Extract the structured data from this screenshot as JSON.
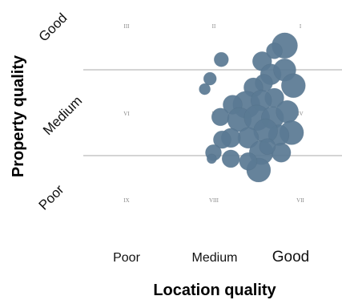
{
  "chart_data": {
    "type": "scatter",
    "xlabel": "Location quality",
    "ylabel": "Property quality",
    "x_categories": [
      "Poor",
      "Medium",
      "Good"
    ],
    "y_categories": [
      "Poor",
      "Medium",
      "Good"
    ],
    "zones": [
      {
        "label": "I",
        "x": "Good",
        "y": "Good"
      },
      {
        "label": "II",
        "x": "Medium",
        "y": "Good"
      },
      {
        "label": "III",
        "x": "Poor",
        "y": "Good"
      },
      {
        "label": "IV",
        "x": "Good",
        "y": "Medium"
      },
      {
        "label": "V",
        "x": "Medium",
        "y": "Medium"
      },
      {
        "label": "VI",
        "x": "Poor",
        "y": "Medium"
      },
      {
        "label": "VII",
        "x": "Good",
        "y": "Poor"
      },
      {
        "label": "VIII",
        "x": "Medium",
        "y": "Poor"
      },
      {
        "label": "IX",
        "x": "Poor",
        "y": "Poor"
      }
    ],
    "bubble_color": "#5a7a93",
    "grid": "horizontal dividers between quality bands",
    "points": [
      {
        "x": 2.82,
        "y": 2.78,
        "size": 16
      },
      {
        "x": 2.56,
        "y": 2.6,
        "size": 12
      },
      {
        "x": 2.7,
        "y": 2.72,
        "size": 10
      },
      {
        "x": 2.66,
        "y": 2.45,
        "size": 13
      },
      {
        "x": 2.82,
        "y": 2.5,
        "size": 14
      },
      {
        "x": 2.92,
        "y": 2.32,
        "size": 15
      },
      {
        "x": 2.58,
        "y": 2.35,
        "size": 11
      },
      {
        "x": 2.46,
        "y": 2.3,
        "size": 12
      },
      {
        "x": 2.7,
        "y": 2.18,
        "size": 12
      },
      {
        "x": 2.38,
        "y": 2.1,
        "size": 17
      },
      {
        "x": 2.55,
        "y": 2.15,
        "size": 13
      },
      {
        "x": 2.22,
        "y": 2.1,
        "size": 12
      },
      {
        "x": 2.08,
        "y": 1.96,
        "size": 11
      },
      {
        "x": 2.3,
        "y": 1.93,
        "size": 15
      },
      {
        "x": 2.5,
        "y": 1.95,
        "size": 16
      },
      {
        "x": 2.68,
        "y": 1.95,
        "size": 14
      },
      {
        "x": 2.85,
        "y": 2.02,
        "size": 14
      },
      {
        "x": 2.9,
        "y": 1.78,
        "size": 15
      },
      {
        "x": 2.75,
        "y": 1.75,
        "size": 13
      },
      {
        "x": 2.6,
        "y": 1.8,
        "size": 15
      },
      {
        "x": 2.4,
        "y": 1.72,
        "size": 13
      },
      {
        "x": 2.2,
        "y": 1.72,
        "size": 12
      },
      {
        "x": 2.1,
        "y": 1.7,
        "size": 11
      },
      {
        "x": 2.55,
        "y": 1.55,
        "size": 15
      },
      {
        "x": 2.78,
        "y": 1.55,
        "size": 12
      },
      {
        "x": 2.52,
        "y": 1.35,
        "size": 15
      },
      {
        "x": 2.4,
        "y": 1.45,
        "size": 11
      },
      {
        "x": 2.2,
        "y": 1.48,
        "size": 11
      },
      {
        "x": 2.62,
        "y": 1.62,
        "size": 10
      },
      {
        "x": 2.0,
        "y": 1.55,
        "size": 10
      },
      {
        "x": 1.96,
        "y": 2.4,
        "size": 8
      },
      {
        "x": 1.9,
        "y": 2.28,
        "size": 7
      },
      {
        "x": 2.09,
        "y": 2.62,
        "size": 9
      },
      {
        "x": 1.98,
        "y": 1.48,
        "size": 6
      }
    ]
  }
}
